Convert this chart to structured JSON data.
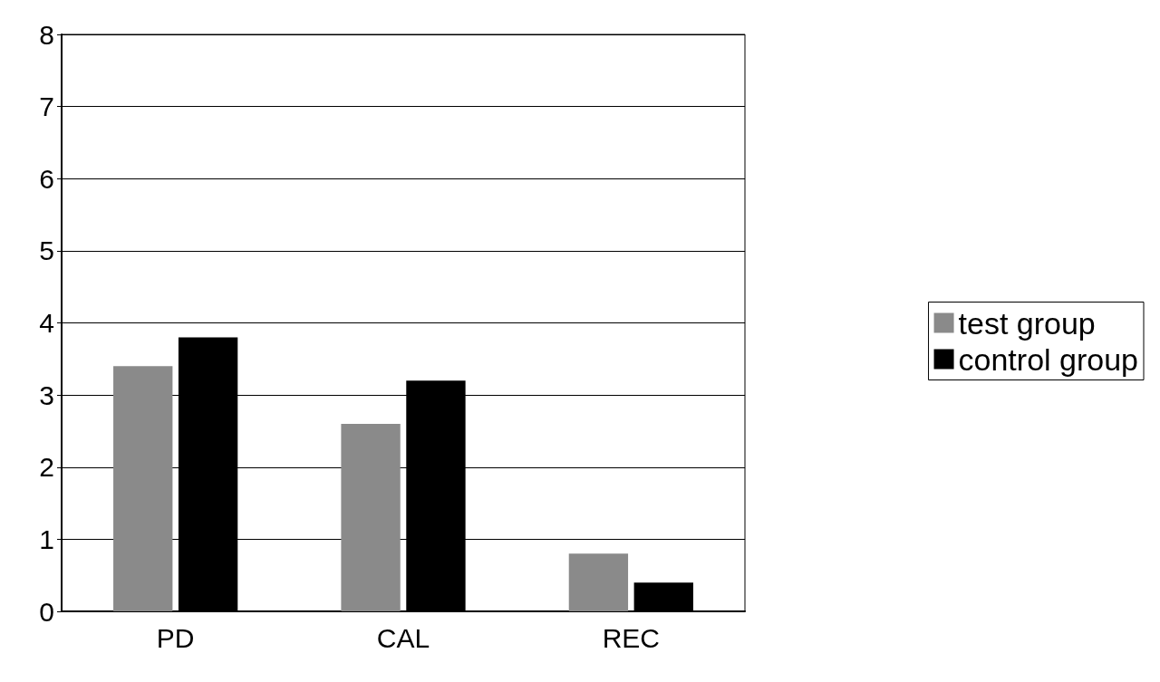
{
  "chart_data": {
    "type": "bar",
    "categories": [
      "PD",
      "CAL",
      "REC"
    ],
    "series": [
      {
        "name": "test group",
        "color": "#8a8a8a",
        "values": [
          3.4,
          2.6,
          0.8
        ]
      },
      {
        "name": "control group",
        "color": "#000000",
        "values": [
          3.8,
          3.2,
          0.4
        ]
      }
    ],
    "ylim": [
      0,
      8
    ],
    "yticks": [
      0,
      1,
      2,
      3,
      4,
      5,
      6,
      7,
      8
    ],
    "grid": "y",
    "legend": "right"
  }
}
